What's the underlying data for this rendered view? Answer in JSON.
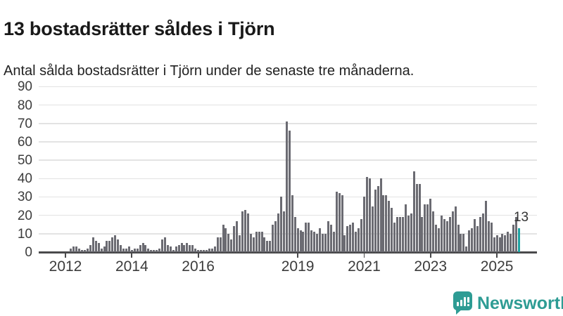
{
  "header": {
    "title": "13 bostadsrätter såldes i Tjörn",
    "subtitle": "Antal sålda bostadsrätter i Tjörn under de senaste tre månaderna."
  },
  "footer": {
    "logo_text": "Newsworthy",
    "logo_icon": "bar-chart-speech-bubble-icon"
  },
  "colors": {
    "bar": "#6b6b72",
    "highlight": "#1fa3a3",
    "axis": "#4a4a4c",
    "grid": "#e3e3e3",
    "tick_text": "#3c3c3c",
    "annotation_text": "#333333",
    "logo": "#2e9c94"
  },
  "chart_data": {
    "type": "bar",
    "title": "13 bostadsrätter såldes i Tjörn",
    "subtitle": "Antal sålda bostadsrätter i Tjörn under de senaste tre månaderna.",
    "ylim": [
      0,
      90
    ],
    "yticks": [
      0,
      10,
      20,
      30,
      40,
      50,
      60,
      70,
      80,
      90
    ],
    "xticks": [
      "2012",
      "2014",
      "2016",
      "2019",
      "2021",
      "2023",
      "2025"
    ],
    "grid": true,
    "legend": "none",
    "annotation": "13",
    "highlight_last_bar": true,
    "x_start": "2011-10",
    "x_end": "2025-09",
    "monthly_values": [
      0,
      0,
      0,
      0,
      0,
      2,
      3,
      3,
      2,
      1,
      1,
      2,
      4,
      8,
      6,
      5,
      2,
      3,
      6,
      6,
      8,
      9,
      7,
      4,
      2,
      2,
      3,
      1,
      2,
      2,
      4,
      5,
      4,
      2,
      1,
      1,
      1,
      2,
      7,
      8,
      4,
      3,
      1,
      3,
      4,
      5,
      4,
      5,
      4,
      4,
      2,
      1,
      1,
      1,
      1,
      2,
      2,
      3,
      8,
      8,
      15,
      13,
      10,
      7,
      14,
      17,
      9,
      22,
      23,
      21,
      10,
      8,
      11,
      11,
      11,
      8,
      6,
      6,
      15,
      17,
      21,
      30,
      22,
      71,
      66,
      31,
      19,
      13,
      12,
      11,
      16,
      16,
      12,
      11,
      10,
      13,
      10,
      10,
      17,
      15,
      11,
      33,
      32,
      31,
      9,
      14,
      15,
      16,
      11,
      13,
      18,
      30,
      41,
      40,
      25,
      34,
      36,
      40,
      31,
      31,
      28,
      24,
      16,
      19,
      19,
      19,
      26,
      20,
      21,
      44,
      37,
      37,
      19,
      26,
      26,
      29,
      22,
      15,
      13,
      20,
      18,
      17,
      19,
      22,
      25,
      15,
      10,
      10,
      3,
      12,
      13,
      18,
      14,
      19,
      21,
      28,
      17,
      16,
      8,
      9,
      8,
      10,
      9,
      11,
      10,
      15,
      19,
      13
    ]
  }
}
